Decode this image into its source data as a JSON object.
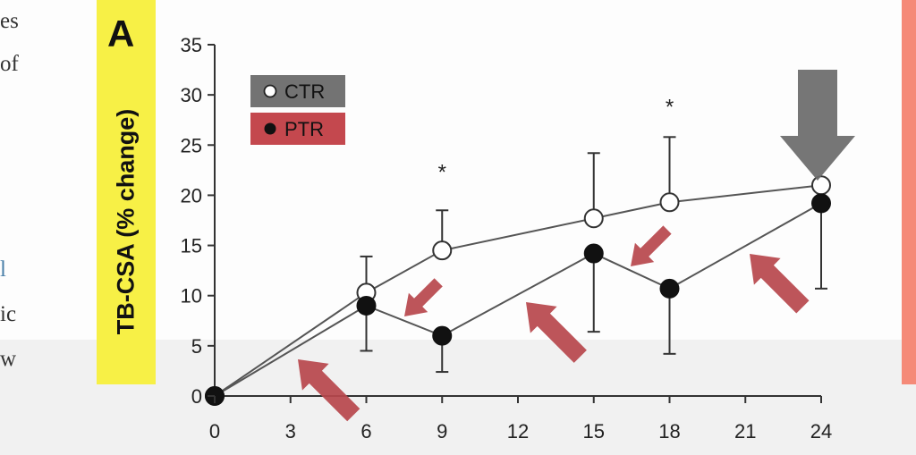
{
  "panel": {
    "letter": "A"
  },
  "side_text": [
    "es",
    "of",
    "l",
    "ic",
    "w"
  ],
  "colors": {
    "label_box": "#f7f046",
    "ctr_legend": "#737373",
    "ptr_legend": "#c4484e",
    "arrow_red": "#b7474c",
    "arrow_gray": "#6a6a6a",
    "right_bar": "#f58a78"
  },
  "chart_data": {
    "type": "line",
    "ylabel": "TB-CSA (% change)",
    "xlabel": "",
    "xlim": [
      0,
      24
    ],
    "ylim": [
      0,
      35
    ],
    "xticks": [
      0,
      3,
      6,
      9,
      12,
      15,
      18,
      21,
      24
    ],
    "yticks": [
      0,
      5,
      10,
      15,
      20,
      25,
      30,
      35
    ],
    "series": [
      {
        "name": "CTR",
        "marker": "open-circle",
        "x": [
          0,
          6,
          9,
          15,
          18,
          24
        ],
        "y": [
          0,
          10.3,
          14.5,
          17.7,
          19.3,
          21.0
        ],
        "err_up": [
          0,
          3.6,
          4.0,
          6.5,
          6.5,
          0
        ]
      },
      {
        "name": "PTR",
        "marker": "filled-circle",
        "x": [
          0,
          6,
          9,
          15,
          18,
          24
        ],
        "y": [
          0,
          9.0,
          6.0,
          14.2,
          10.7,
          19.2
        ],
        "err_down": [
          0,
          4.5,
          3.6,
          7.8,
          6.5,
          8.5
        ]
      }
    ],
    "significance": [
      {
        "x": 9,
        "label": "*"
      },
      {
        "x": 18,
        "label": "*"
      }
    ],
    "legend": "top-left"
  }
}
